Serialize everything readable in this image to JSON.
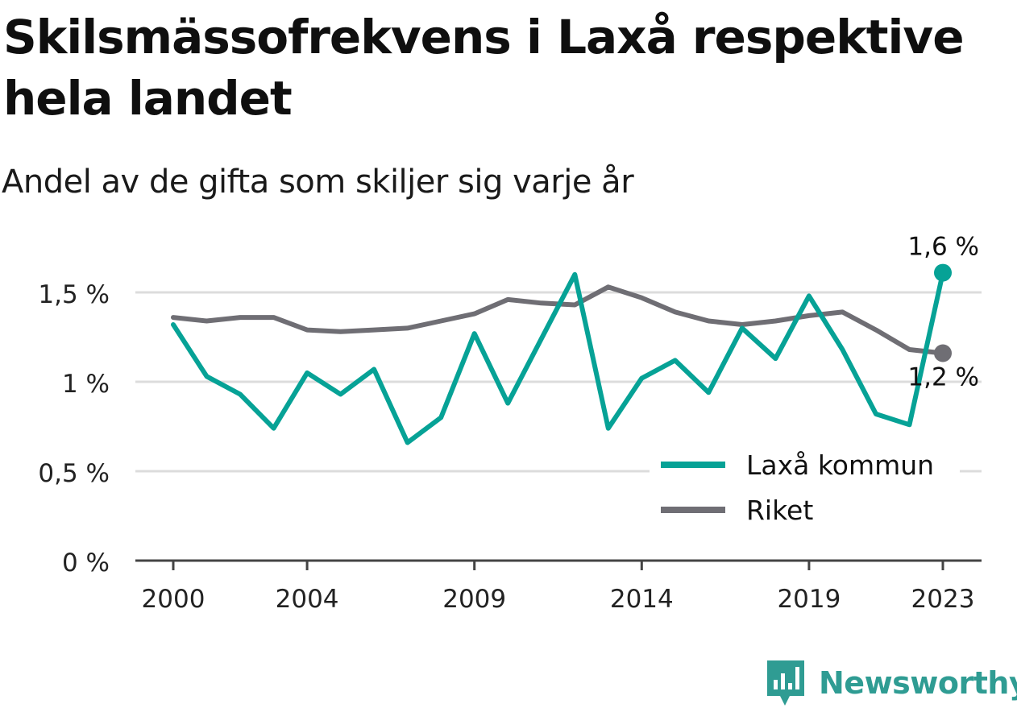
{
  "title": "Skilsmässofrekvens i Laxå respektive hela landet",
  "subtitle": "Andel av de gifta som skiljer sig varje år",
  "brand": "Newsworthy",
  "colors": {
    "laxa": "#06a296",
    "riket": "#6f6e74",
    "grid": "#dcdcdc",
    "axis": "#444444"
  },
  "chart_data": {
    "type": "line",
    "x": [
      2000,
      2001,
      2002,
      2003,
      2004,
      2005,
      2006,
      2007,
      2008,
      2009,
      2010,
      2011,
      2012,
      2013,
      2014,
      2015,
      2016,
      2017,
      2018,
      2019,
      2020,
      2021,
      2022,
      2023
    ],
    "x_ticks": [
      {
        "value": 2000,
        "label": "2000"
      },
      {
        "value": 2004,
        "label": "2004"
      },
      {
        "value": 2009,
        "label": "2009"
      },
      {
        "value": 2014,
        "label": "2014"
      },
      {
        "value": 2019,
        "label": "2019"
      },
      {
        "value": 2023,
        "label": "2023"
      }
    ],
    "y_ticks": [
      {
        "value": 0,
        "label": "0 %"
      },
      {
        "value": 0.5,
        "label": "0,5 %"
      },
      {
        "value": 1,
        "label": "1 %"
      },
      {
        "value": 1.5,
        "label": "1,5 %"
      }
    ],
    "ylim": [
      0,
      1.7
    ],
    "series": [
      {
        "name": "Laxå kommun",
        "color": "#06a296",
        "values": [
          1.32,
          1.03,
          0.93,
          0.74,
          1.05,
          0.93,
          1.07,
          0.66,
          0.8,
          1.27,
          0.88,
          1.24,
          1.6,
          0.74,
          1.02,
          1.12,
          0.94,
          1.3,
          1.13,
          1.48,
          1.18,
          0.82,
          0.76,
          1.61
        ],
        "end_label": "1,6 %"
      },
      {
        "name": "Riket",
        "color": "#6f6e74",
        "values": [
          1.36,
          1.34,
          1.36,
          1.36,
          1.29,
          1.28,
          1.29,
          1.3,
          1.34,
          1.38,
          1.46,
          1.44,
          1.43,
          1.53,
          1.47,
          1.39,
          1.34,
          1.32,
          1.34,
          1.37,
          1.39,
          1.29,
          1.18,
          1.16
        ],
        "end_label": "1,2 %"
      }
    ],
    "legend_position": "bottom-right",
    "grid": true
  }
}
